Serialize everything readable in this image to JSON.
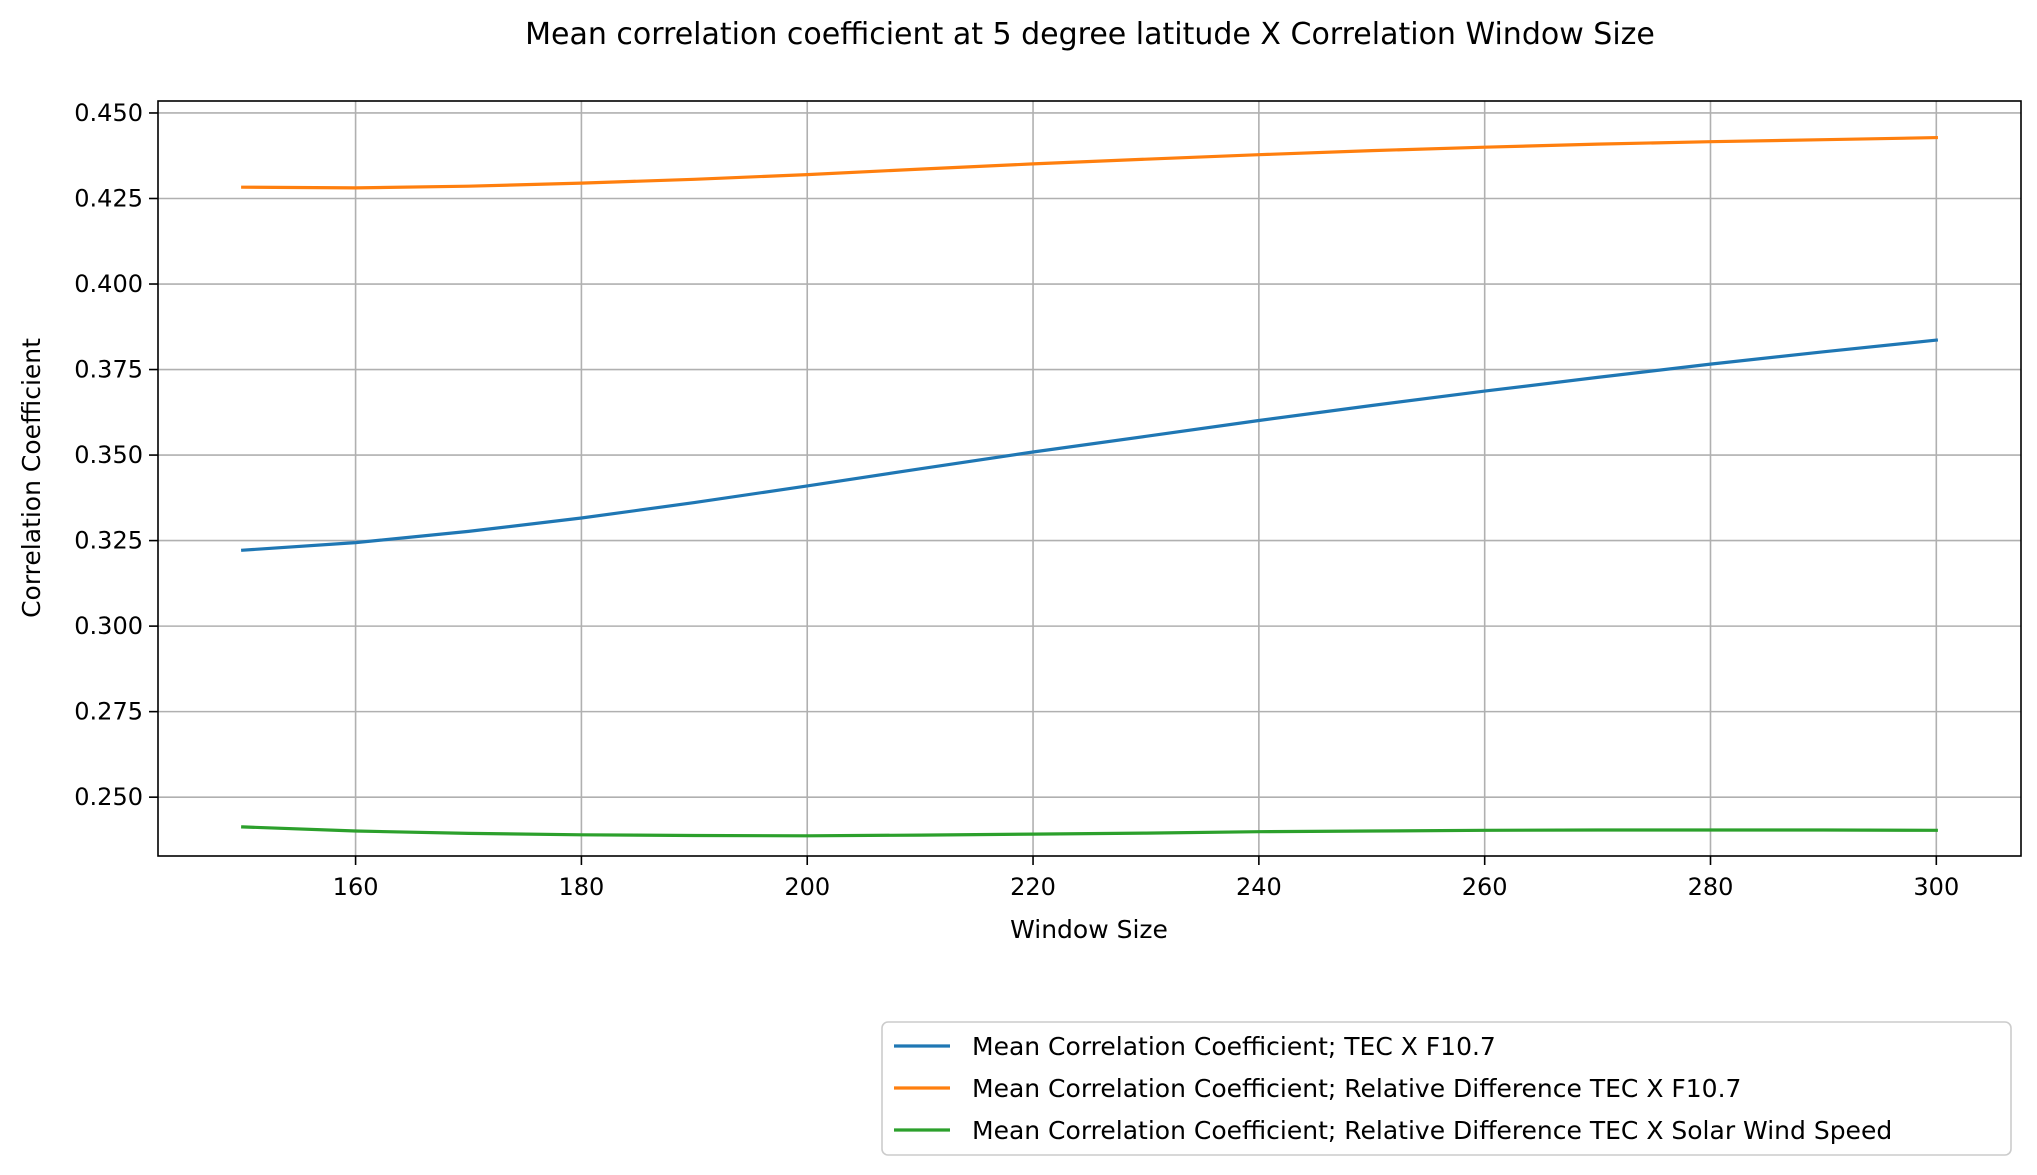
{
  "chart_data": {
    "type": "line",
    "title": "Mean correlation coefficient at 5 degree latitude X Correlation Window Size",
    "xlabel": "Window Size",
    "ylabel": "Correlation Coefficient",
    "xlim": [
      142.5,
      307.5
    ],
    "ylim": [
      0.2328,
      0.4535
    ],
    "xticks": [
      160,
      180,
      200,
      220,
      240,
      260,
      280,
      300
    ],
    "yticks": [
      0.25,
      0.275,
      0.3,
      0.325,
      0.35,
      0.375,
      0.4,
      0.425,
      0.45
    ],
    "xtick_labels": [
      "160",
      "180",
      "200",
      "220",
      "240",
      "260",
      "280",
      "300"
    ],
    "ytick_labels": [
      "0.250",
      "0.275",
      "0.300",
      "0.325",
      "0.350",
      "0.375",
      "0.400",
      "0.425",
      "0.450"
    ],
    "grid": true,
    "legend_position": "below-right",
    "x": [
      150,
      160,
      170,
      180,
      190,
      200,
      210,
      220,
      230,
      240,
      250,
      260,
      270,
      280,
      290,
      300
    ],
    "series": [
      {
        "name": "Mean Correlation Coefficient; TEC X F10.7",
        "color": "#1f77b4",
        "values": [
          0.3222,
          0.3244,
          0.3277,
          0.3316,
          0.3361,
          0.341,
          0.346,
          0.3509,
          0.3555,
          0.3601,
          0.3645,
          0.3687,
          0.3727,
          0.3766,
          0.3802,
          0.3836
        ]
      },
      {
        "name": "Mean Correlation Coefficient; Relative Difference TEC X F10.7",
        "color": "#ff7f0e",
        "values": [
          0.4283,
          0.4281,
          0.4286,
          0.4295,
          0.4306,
          0.432,
          0.4336,
          0.4351,
          0.4365,
          0.4378,
          0.439,
          0.44,
          0.4409,
          0.4416,
          0.4422,
          0.4428
        ]
      },
      {
        "name": "Mean Correlation Coefficient; Relative Difference TEC X Solar Wind Speed",
        "color": "#2ca02c",
        "values": [
          0.2413,
          0.2401,
          0.2394,
          0.239,
          0.2388,
          0.2387,
          0.2389,
          0.2392,
          0.2395,
          0.2399,
          0.2401,
          0.2403,
          0.2404,
          0.2404,
          0.2404,
          0.2403
        ]
      }
    ]
  }
}
